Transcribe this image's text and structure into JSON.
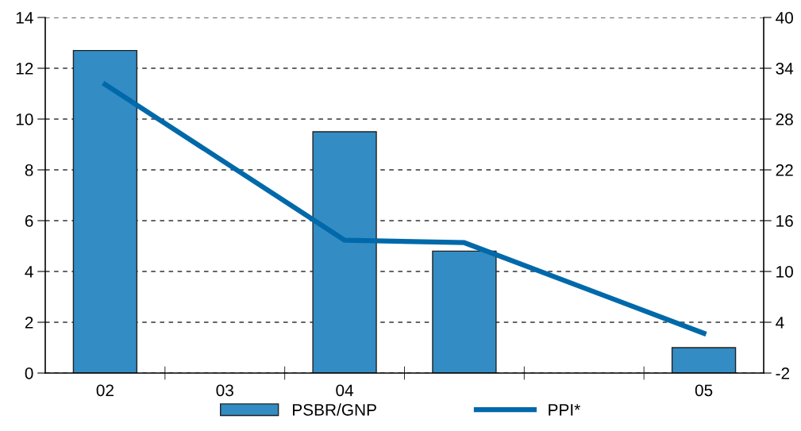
{
  "chart_data": {
    "type": "bar",
    "categories": [
      "02",
      "03",
      "04",
      null,
      null,
      "05"
    ],
    "series": [
      {
        "name": "PSBR/GNP",
        "color": "#338cc3",
        "values": [
          12.7,
          null,
          9.5,
          4.8,
          null,
          1.0
        ]
      },
      {
        "name": "PPI*",
        "type": "line",
        "axis": "y2",
        "color": "#0069aa",
        "values": [
          32.1,
          null,
          13.7,
          13.4,
          null,
          2.7
        ]
      }
    ],
    "ylim": [
      0,
      14
    ],
    "yticks": [
      0,
      2,
      4,
      6,
      8,
      10,
      12,
      14
    ],
    "y2lim": [
      -2,
      40
    ],
    "y2ticks": [
      -2,
      4,
      10,
      16,
      22,
      28,
      34,
      40
    ],
    "grid": "y",
    "legend": "bottom",
    "line_style": "solid",
    "marker": "none"
  }
}
